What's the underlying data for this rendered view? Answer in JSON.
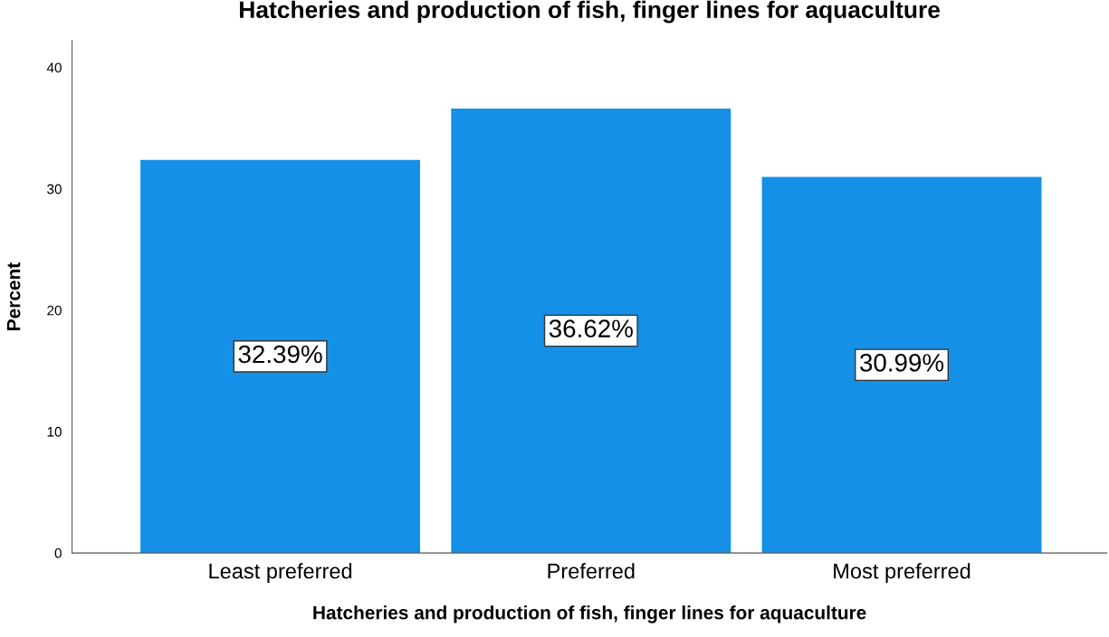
{
  "chart_data": {
    "type": "bar",
    "title": "Hatcheries and production of fish, finger lines for aquaculture",
    "xlabel": "Hatcheries and production of fish, finger lines for aquaculture",
    "ylabel": "Percent",
    "categories": [
      "Least preferred",
      "Preferred",
      "Most preferred"
    ],
    "values": [
      32.39,
      36.62,
      30.99
    ],
    "value_labels": [
      "32.39%",
      "36.62%",
      "30.99%"
    ],
    "color": "#1490e6",
    "ylim": [
      0,
      42.2
    ],
    "yticks": [
      0,
      10,
      20,
      30,
      40
    ],
    "grid": false
  }
}
